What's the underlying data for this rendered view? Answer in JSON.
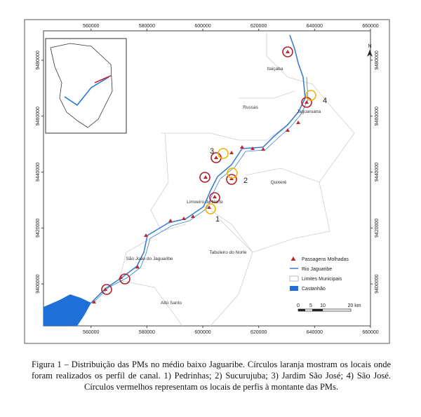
{
  "map": {
    "xlim": [
      543000,
      660000
    ],
    "ylim": [
      9385000,
      9490500
    ],
    "xticks": [
      560000,
      580000,
      600000,
      620000,
      640000,
      660000
    ],
    "yticks": [
      9400000,
      9420000,
      9440000,
      9460000,
      9480000
    ],
    "places": [
      "Itaiçaba",
      "Russas",
      "Jaguaruana",
      "Quixeré",
      "Limoeiro do Norte",
      "Tabuleiro do Norte",
      "São João do Jaguaribe",
      "Alto Santo"
    ],
    "sites": [
      "1",
      "2",
      "3",
      "4"
    ],
    "north": "N",
    "legend": [
      "Passagens Molhadas",
      "Rio Jaguaribe",
      "Limites Municipais",
      "Castanhão"
    ],
    "scale": [
      "0",
      "5",
      "10",
      "20 km"
    ]
  },
  "caption": "Figura 1 – Distribuição das PMs no médio baixo Jaguaribe. Círculos laranja mostram os locais onde foram realizados os perfil de canal. 1) Pedrinhas; 2) Sucurujuba; 3) Jardim São José; 4) São José. Círculos vermelhos representam os locais de perfis à montante das PMs."
}
